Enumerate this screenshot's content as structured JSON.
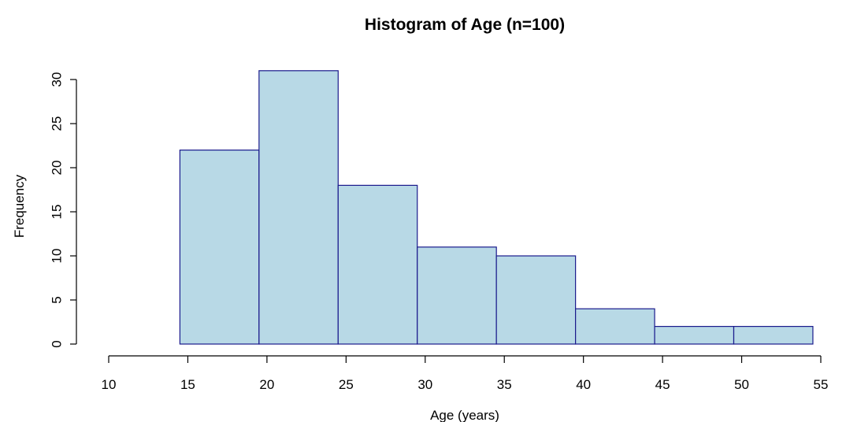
{
  "chart_data": {
    "type": "bar",
    "title": "Histogram of Age (n=100)",
    "xlabel": "Age (years)",
    "ylabel": "Frequency",
    "bins": [
      {
        "start": 14.5,
        "end": 19.5,
        "count": 22
      },
      {
        "start": 19.5,
        "end": 24.5,
        "count": 31
      },
      {
        "start": 24.5,
        "end": 29.5,
        "count": 18
      },
      {
        "start": 29.5,
        "end": 34.5,
        "count": 11
      },
      {
        "start": 34.5,
        "end": 39.5,
        "count": 10
      },
      {
        "start": 39.5,
        "end": 44.5,
        "count": 4
      },
      {
        "start": 44.5,
        "end": 49.5,
        "count": 2
      },
      {
        "start": 49.5,
        "end": 54.5,
        "count": 2
      }
    ],
    "xlim": [
      10,
      55
    ],
    "ylim": [
      0,
      30
    ],
    "x_ticks": [
      10,
      15,
      20,
      25,
      30,
      35,
      40,
      45,
      50,
      55
    ],
    "y_ticks": [
      0,
      5,
      10,
      15,
      20,
      25,
      30
    ],
    "grid": false,
    "bar_fill": "#b8d9e6",
    "bar_stroke": "#1a1a8c"
  }
}
